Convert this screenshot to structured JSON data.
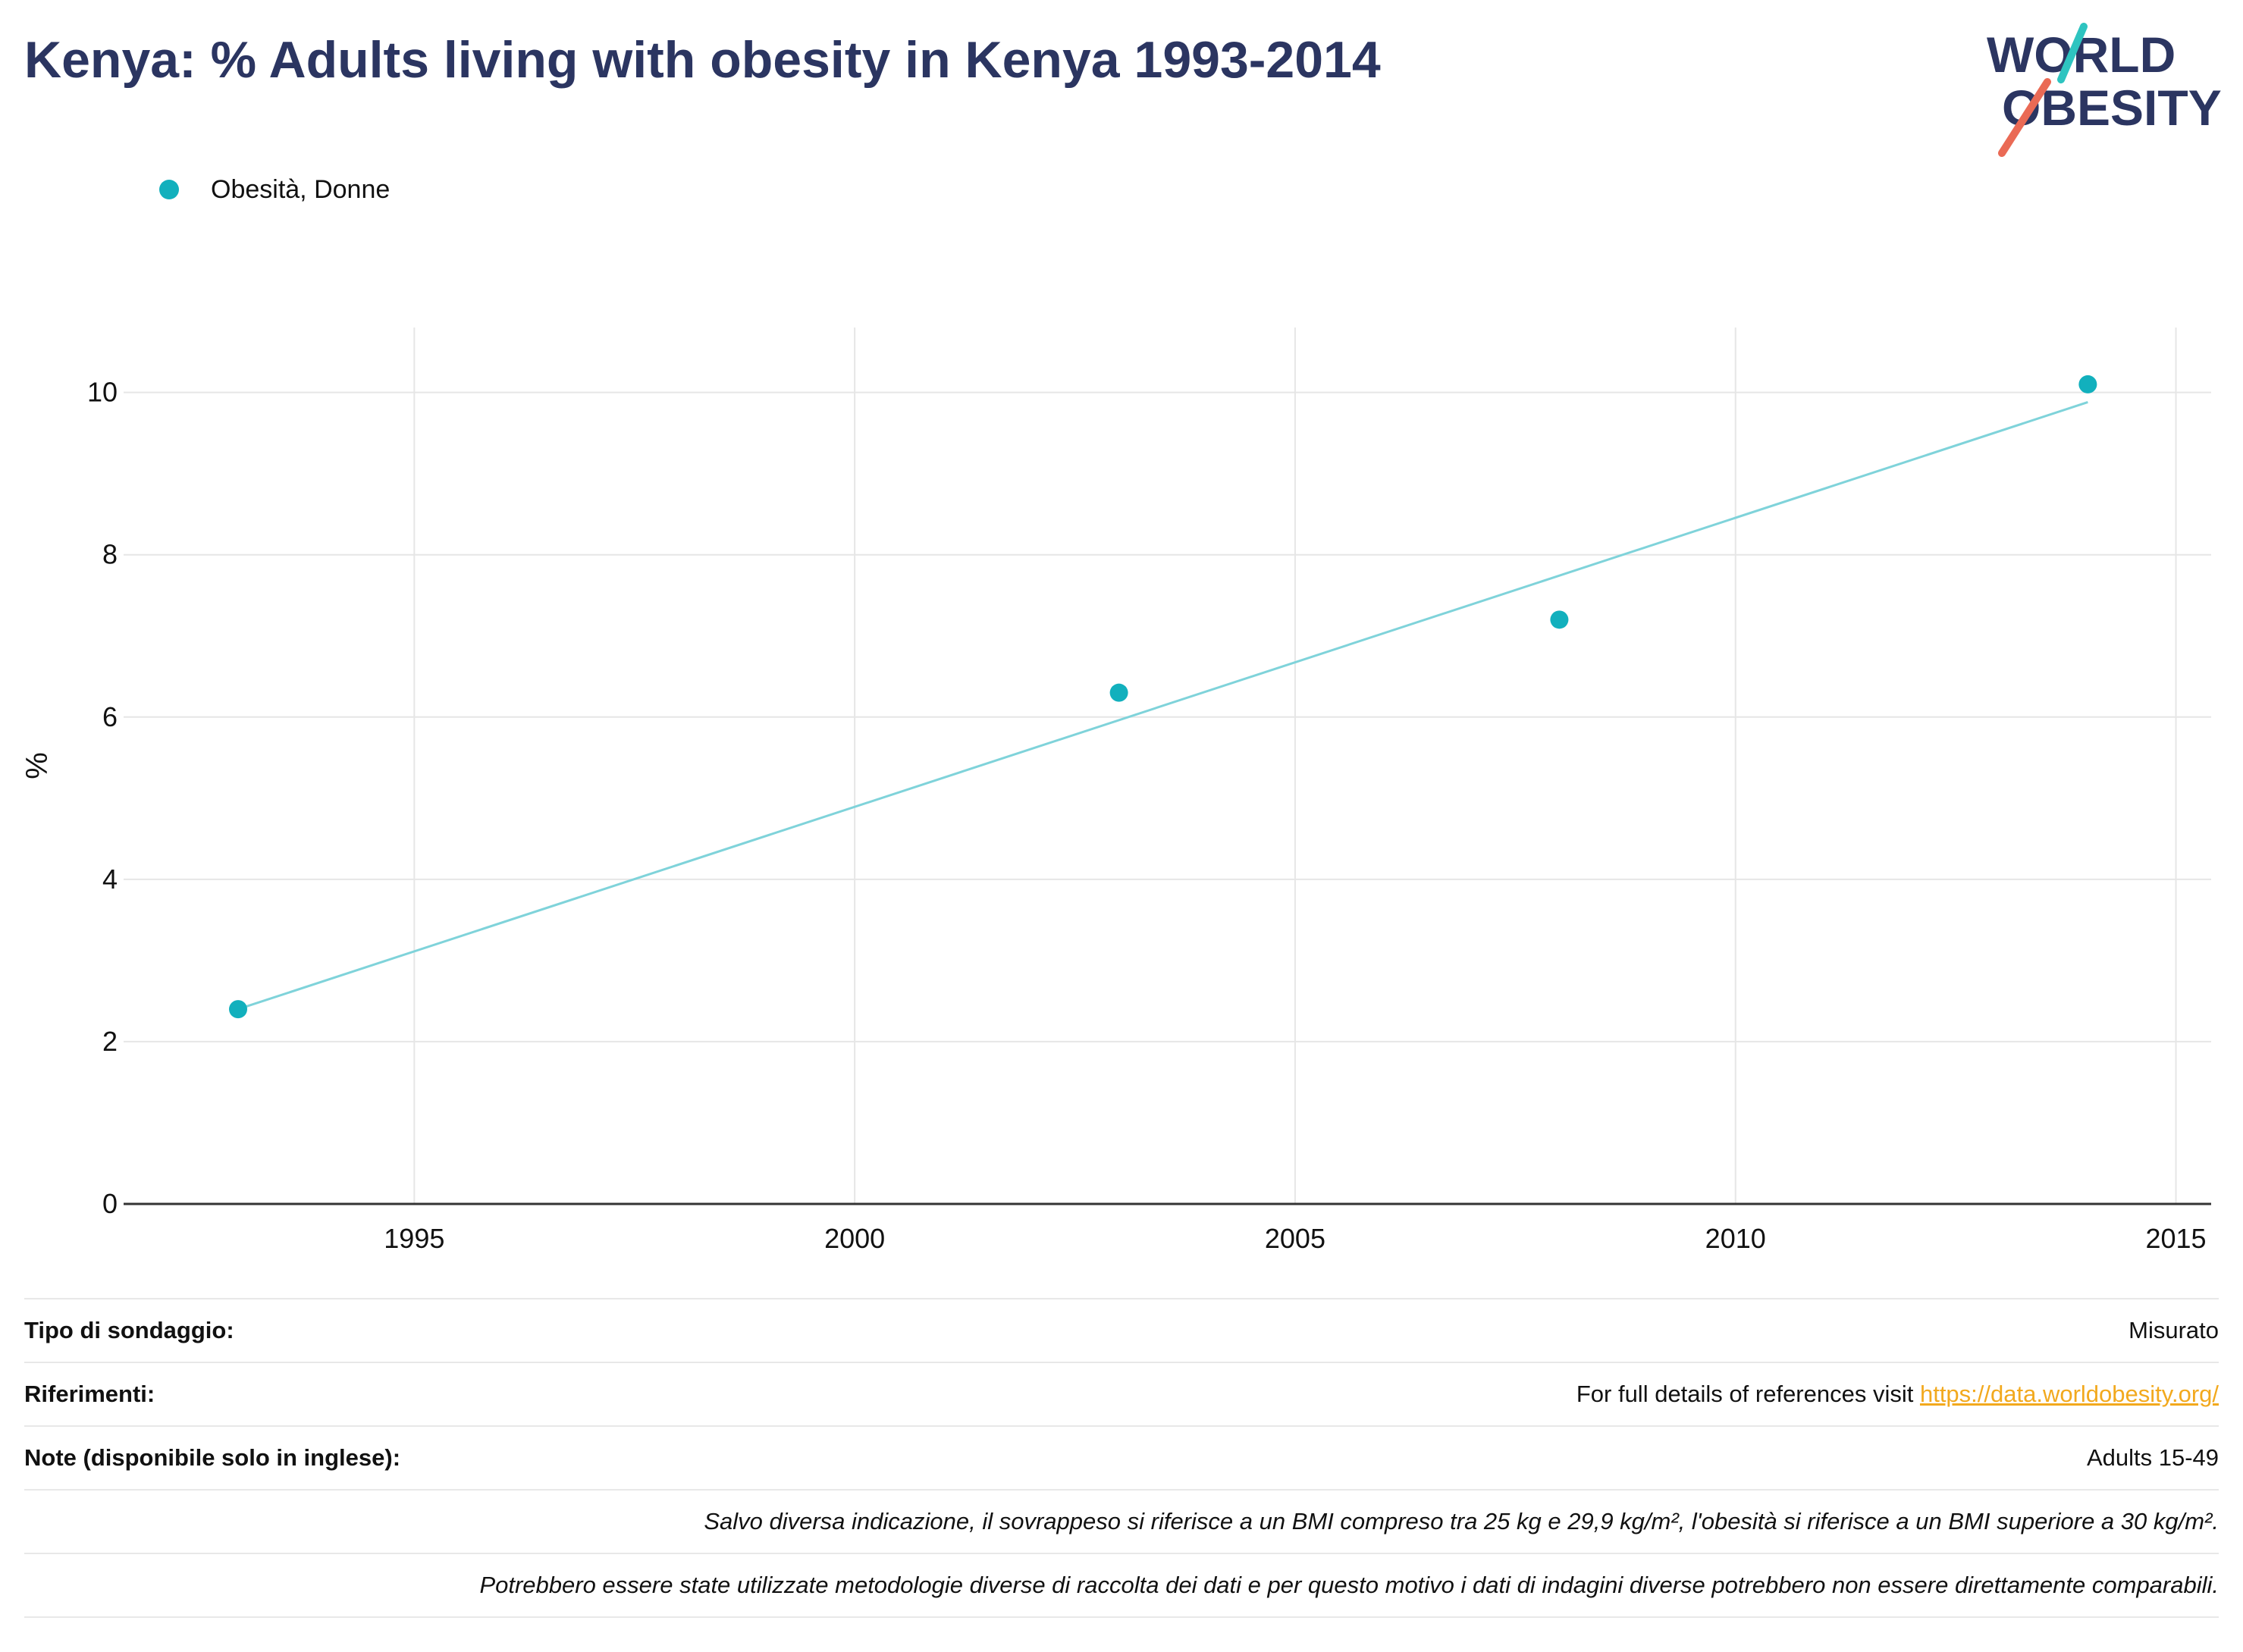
{
  "title": "Kenya: % Adults living with obesity in Kenya 1993-2014",
  "logo": {
    "line1": "WORLD",
    "line2": "OBESITY"
  },
  "colors": {
    "title": "#2b3561",
    "series": "#12b0bd",
    "trend": "#7fd3da",
    "logo_teal": "#2ec4c0",
    "logo_red": "#ea6a55",
    "link": "#f2a91e"
  },
  "chart_data": {
    "type": "scatter",
    "title": "Kenya: % Adults living with obesity in Kenya 1993-2014",
    "xlabel": "",
    "ylabel": "%",
    "xlim": [
      1991.7,
      2015.4
    ],
    "ylim": [
      0,
      10.8
    ],
    "xticks": [
      1995,
      2000,
      2005,
      2010,
      2015
    ],
    "yticks": [
      0,
      2,
      4,
      6,
      8,
      10
    ],
    "grid": true,
    "legend_position": "top-left",
    "series": [
      {
        "name": "Obesità, Donne",
        "x": [
          1993,
          2003,
          2008,
          2014
        ],
        "y": [
          2.4,
          6.3,
          7.2,
          10.1
        ]
      }
    ],
    "trendline": {
      "x": [
        1993,
        2014
      ],
      "y": [
        2.4,
        9.88
      ]
    }
  },
  "footer": {
    "rows": [
      {
        "label": "Tipo di sondaggio:",
        "value": "Misurato"
      },
      {
        "label": "Riferimenti:",
        "value_prefix": "For full details of references visit ",
        "link": "https://data.worldobesity.org/"
      },
      {
        "label": "Note (disponibile solo in inglese):",
        "value": "Adults 15-49"
      }
    ],
    "notes": [
      "Salvo diversa indicazione, il sovrappeso si riferisce a un BMI compreso tra 25 kg e 29,9 kg/m², l'obesità si riferisce a un BMI superiore a 30 kg/m².",
      "Potrebbero essere state utilizzate metodologie diverse di raccolta dei dati e per questo motivo i dati di indagini diverse potrebbero non essere direttamente comparabili."
    ]
  }
}
